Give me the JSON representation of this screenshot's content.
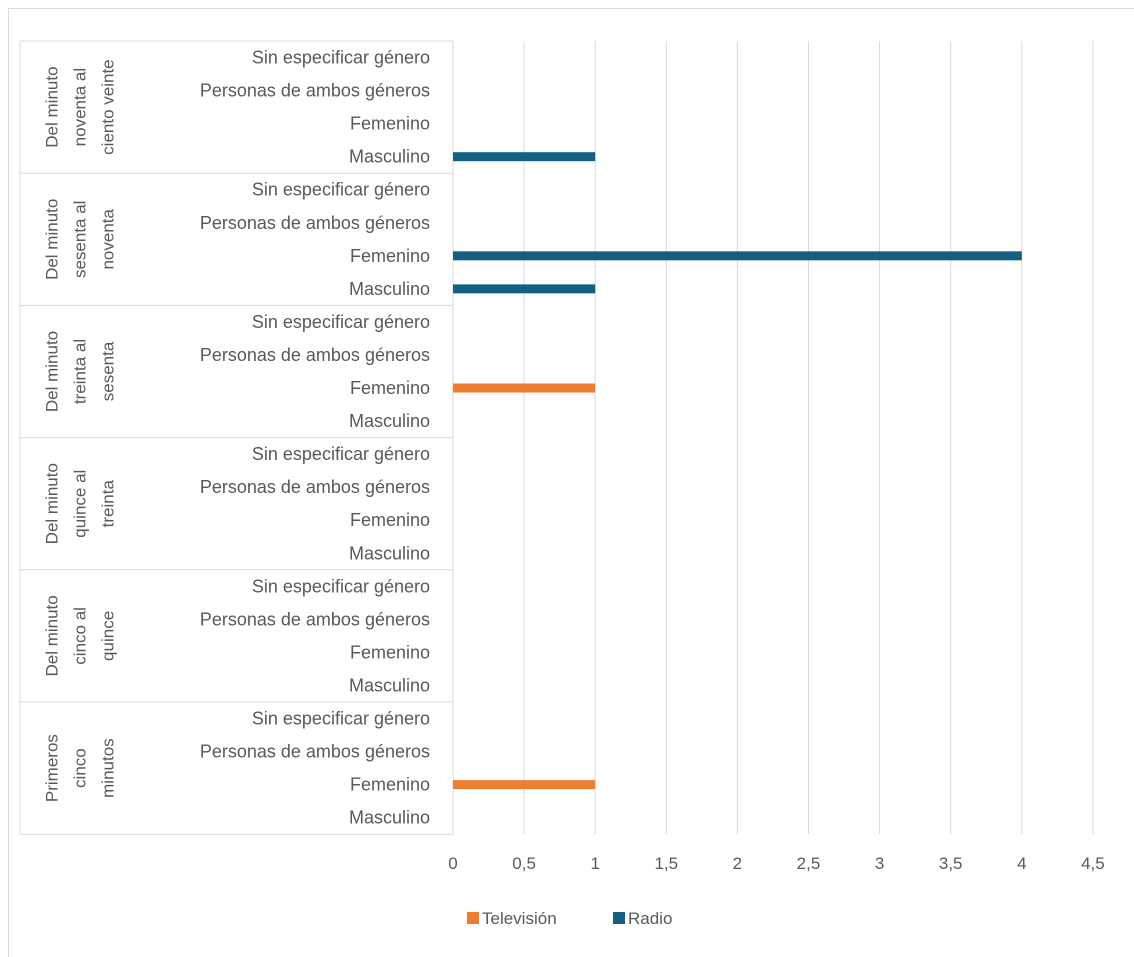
{
  "chart_data": {
    "type": "bar",
    "orientation": "horizontal",
    "groups": [
      {
        "label_lines": [
          "Del minuto",
          "noventa al",
          "ciento veinte"
        ]
      },
      {
        "label_lines": [
          "Del minuto",
          "sesenta al",
          "noventa"
        ]
      },
      {
        "label_lines": [
          "Del minuto",
          "treinta al",
          "sesenta"
        ]
      },
      {
        "label_lines": [
          "Del minuto",
          "quince al",
          "treinta"
        ]
      },
      {
        "label_lines": [
          "Del minuto",
          "cinco al",
          "quince"
        ]
      },
      {
        "label_lines": [
          "Primeros",
          "cinco",
          "minutos"
        ]
      }
    ],
    "subcategories": [
      "Sin especificar género",
      "Personas de ambos géneros",
      "Femenino",
      "Masculino"
    ],
    "series": [
      {
        "name": "Televisión",
        "color": "#ED7D31",
        "values": [
          [
            0,
            0,
            0,
            0
          ],
          [
            0,
            0,
            0,
            0
          ],
          [
            0,
            0,
            1,
            0
          ],
          [
            0,
            0,
            0,
            0
          ],
          [
            0,
            0,
            0,
            0
          ],
          [
            0,
            0,
            1,
            0
          ]
        ]
      },
      {
        "name": "Radio",
        "color": "#156082",
        "values": [
          [
            0,
            0,
            0,
            1
          ],
          [
            0,
            0,
            4,
            1
          ],
          [
            0,
            0,
            0,
            0
          ],
          [
            0,
            0,
            0,
            0
          ],
          [
            0,
            0,
            0,
            0
          ],
          [
            0,
            0,
            0,
            0
          ]
        ]
      }
    ],
    "xlim": [
      0,
      4.5
    ],
    "xticks": [
      "0",
      "0,5",
      "1",
      "1,5",
      "2",
      "2,5",
      "3",
      "3,5",
      "4",
      "4,5"
    ],
    "grid": true,
    "legend_position": "bottom"
  }
}
